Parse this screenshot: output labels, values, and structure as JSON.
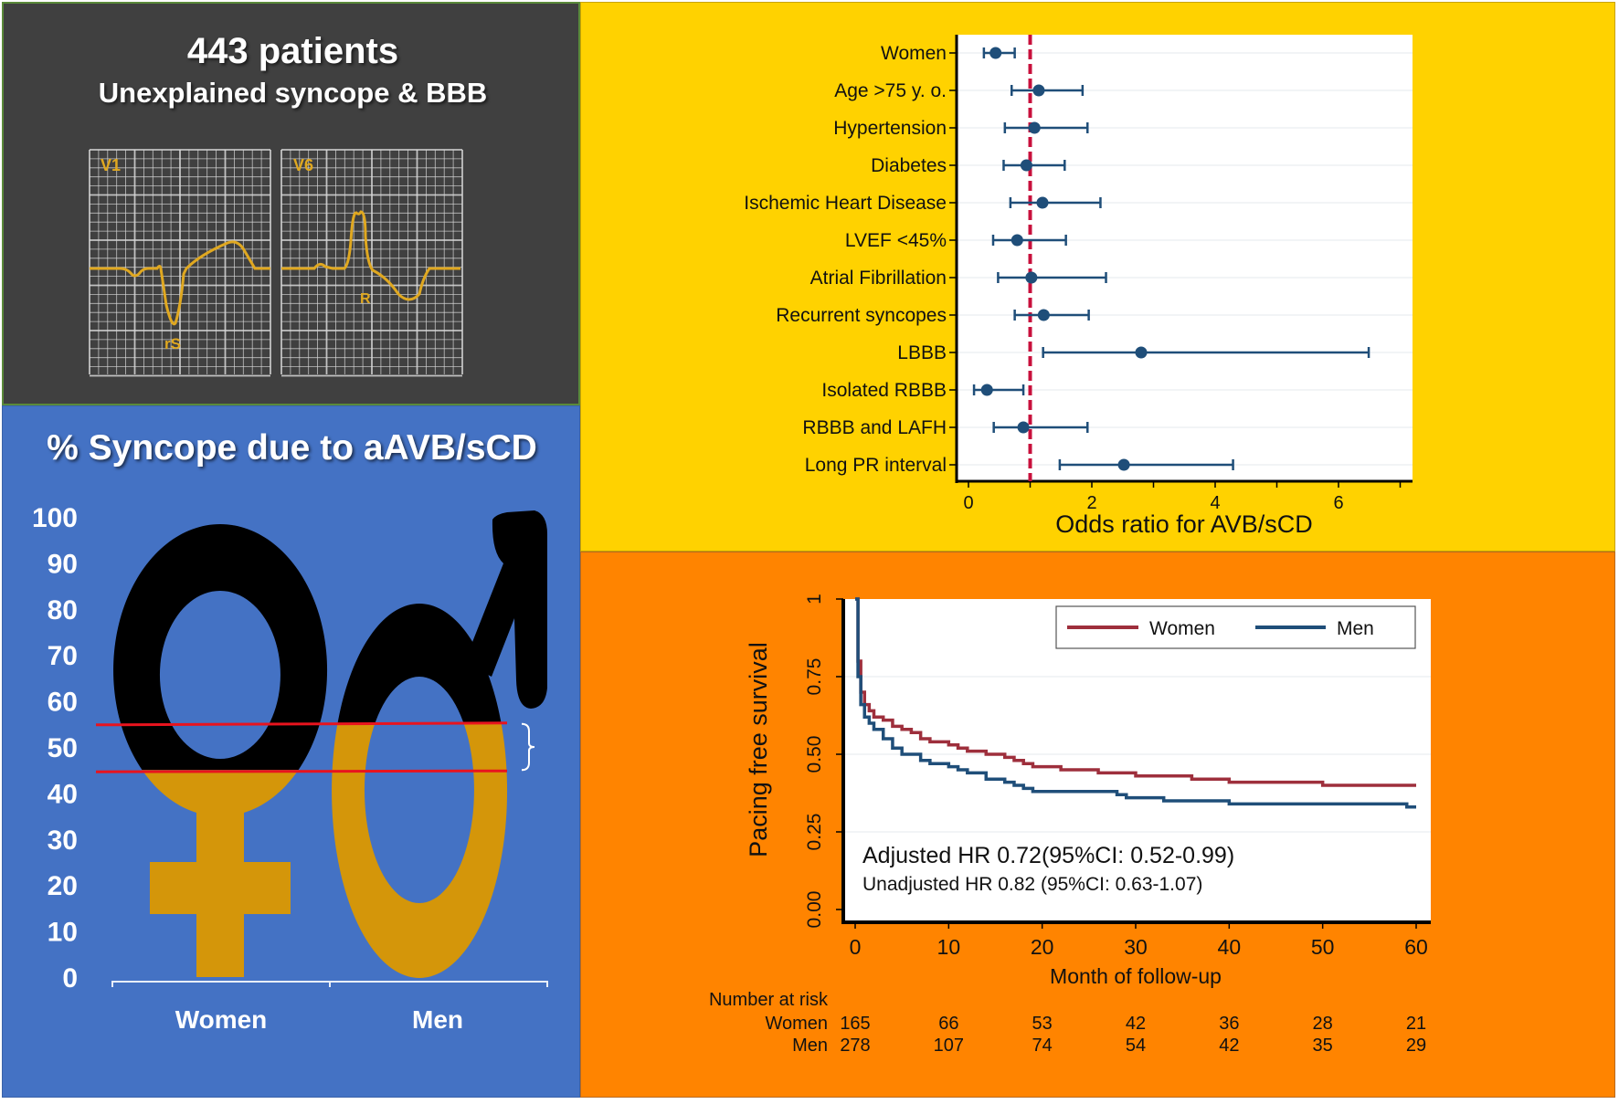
{
  "cohort_panel": {
    "title": "443 patients",
    "subtitle": "Unexplained syncope & BBB",
    "ecg": [
      {
        "lead": "V1",
        "pattern_label": "rS"
      },
      {
        "lead": "V6",
        "pattern_label": "R"
      }
    ],
    "colors": {
      "background": "#404040",
      "trace": "#e0a820",
      "grid": "#d8d8d8"
    }
  },
  "syncope_panel": {
    "title": "% Syncope due to aAVB/sCD",
    "colors": {
      "background": "#4472c4",
      "fill": "#d4960a",
      "empty": "#000000",
      "line": "#e8141e"
    }
  },
  "forest_panel": {
    "colors": {
      "background": "#ffd200",
      "point": "#1f4e79",
      "reference": "#c8103c"
    }
  },
  "km_panel": {
    "colors": {
      "background": "#ff8400",
      "women": "#9e2f3c",
      "men": "#1f4e79"
    },
    "annotation_adjusted": "Adjusted HR 0.72(95%CI: 0.52-0.99)",
    "annotation_unadjusted": "Unadjusted HR 0.82 (95%CI: 0.63-1.07)",
    "risk_table": {
      "title": "Number at risk",
      "rows": [
        {
          "label": "Women",
          "values": [
            165,
            66,
            53,
            42,
            36,
            28,
            21
          ]
        },
        {
          "label": "Men",
          "values": [
            278,
            107,
            74,
            54,
            42,
            35,
            29
          ]
        }
      ]
    }
  },
  "chart_data": [
    {
      "type": "bar",
      "title": "% Syncope due to aAVB/sCD",
      "categories": [
        "Women",
        "Men"
      ],
      "values": [
        45,
        55
      ],
      "ylim": [
        0,
        100
      ],
      "yticks": [
        0,
        10,
        20,
        30,
        40,
        50,
        60,
        70,
        80,
        90,
        100
      ],
      "xlabel": "",
      "ylabel": "",
      "annotations": [
        "reference lines at 45 and 55 with bracket showing the difference"
      ]
    },
    {
      "type": "scatter",
      "subtype": "forest",
      "title": "",
      "xlabel": "Odds ratio for AVB/sCD",
      "xlim": [
        -0.15,
        7.2
      ],
      "xticks": [
        0,
        2,
        4,
        6
      ],
      "reference_line": 1,
      "categories": [
        "Women",
        "Age >75 y. o.",
        "Hypertension",
        "Diabetes",
        "Ischemic Heart Disease",
        "LVEF <45%",
        "Atrial Fibrillation",
        "Recurrent syncopes",
        "LBBB",
        "Isolated RBBB",
        "RBBB and LAFH",
        "Long PR interval"
      ],
      "estimate": [
        0.44,
        1.14,
        1.07,
        0.94,
        1.2,
        0.79,
        1.02,
        1.22,
        2.8,
        0.3,
        0.89,
        2.52
      ],
      "ci_lower": [
        0.25,
        0.7,
        0.59,
        0.57,
        0.68,
        0.4,
        0.48,
        0.75,
        1.21,
        0.09,
        0.41,
        1.48
      ],
      "ci_upper": [
        0.75,
        1.85,
        1.93,
        1.56,
        2.14,
        1.58,
        2.23,
        1.95,
        6.49,
        0.89,
        1.93,
        4.29
      ]
    },
    {
      "type": "line",
      "subtype": "kaplan-meier",
      "title": "",
      "xlabel": "Month of follow-up",
      "ylabel": "Pacing free survival",
      "xlim": [
        0,
        60
      ],
      "ylim": [
        0,
        1
      ],
      "xticks": [
        0,
        10,
        20,
        30,
        40,
        50,
        60
      ],
      "yticks": [
        "0.00",
        "0.25",
        "0.50",
        "0.75",
        "1"
      ],
      "legend": "top-right",
      "series": [
        {
          "name": "Women",
          "x": [
            0,
            0.3,
            0.6,
            1,
            1.5,
            2,
            3,
            4,
            5,
            6,
            7,
            8,
            10,
            11,
            12,
            14,
            16,
            17,
            18,
            19,
            20,
            22,
            26,
            28,
            30,
            34,
            36,
            40,
            45,
            49,
            50,
            55,
            60
          ],
          "y": [
            1.0,
            0.8,
            0.7,
            0.66,
            0.64,
            0.62,
            0.61,
            0.59,
            0.58,
            0.57,
            0.55,
            0.54,
            0.53,
            0.52,
            0.51,
            0.5,
            0.49,
            0.48,
            0.47,
            0.46,
            0.46,
            0.45,
            0.44,
            0.44,
            0.43,
            0.43,
            0.42,
            0.41,
            0.41,
            0.41,
            0.4,
            0.4,
            0.4
          ]
        },
        {
          "name": "Men",
          "x": [
            0,
            0.3,
            0.6,
            1,
            1.5,
            2,
            3,
            4,
            5,
            6,
            7,
            8,
            10,
            11,
            12,
            14,
            16,
            17,
            18,
            19,
            20,
            25,
            28,
            29,
            33,
            36,
            40,
            45,
            50,
            55,
            59,
            60
          ],
          "y": [
            1.0,
            0.75,
            0.66,
            0.62,
            0.6,
            0.58,
            0.55,
            0.52,
            0.5,
            0.5,
            0.48,
            0.47,
            0.46,
            0.45,
            0.44,
            0.42,
            0.41,
            0.4,
            0.39,
            0.38,
            0.38,
            0.38,
            0.37,
            0.36,
            0.35,
            0.35,
            0.34,
            0.34,
            0.34,
            0.34,
            0.33,
            0.33
          ]
        }
      ]
    }
  ]
}
